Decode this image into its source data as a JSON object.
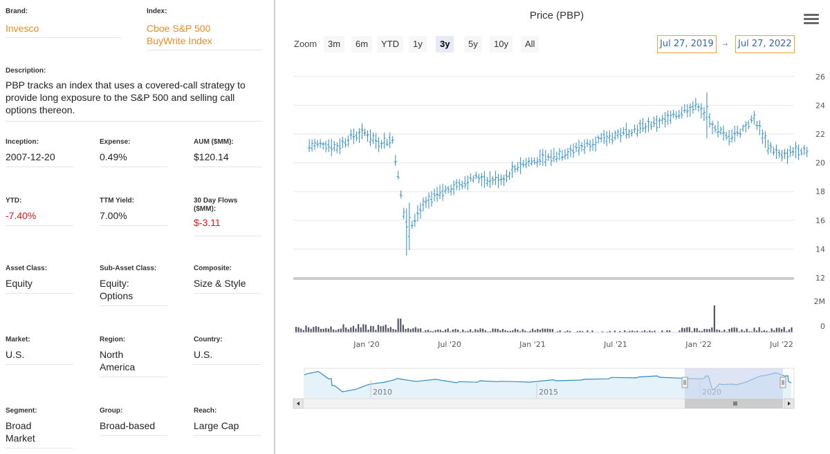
{
  "fund": {
    "brand": {
      "label": "Brand:",
      "value": "Invesco"
    },
    "index": {
      "label": "Index:",
      "value": "Cboe S&P 500 BuyWrite Index"
    },
    "description": {
      "label": "Description:",
      "value": "PBP tracks an index that uses a covered-call strategy to provide long exposure to the S&P 500 and selling call options thereon."
    },
    "inception": {
      "label": "Inception:",
      "value": "2007-12-20"
    },
    "expense": {
      "label": "Expense:",
      "value": "0.49%"
    },
    "aum": {
      "label": "AUM ($MM):",
      "value": "$120.14"
    },
    "ytd": {
      "label": "YTD:",
      "value": "-7.40%"
    },
    "ttm_yield": {
      "label": "TTM Yield:",
      "value": "7.00%"
    },
    "flows": {
      "label": "30 Day Flows ($MM):",
      "value": "$-3.11"
    },
    "asset_class": {
      "label": "Asset Class:",
      "value": "Equity"
    },
    "sub_asset_class": {
      "label": "Sub-Asset Class:",
      "value": "Equity: Options"
    },
    "composite": {
      "label": "Composite:",
      "value": "Size & Style"
    },
    "market": {
      "label": "Market:",
      "value": "U.S."
    },
    "region": {
      "label": "Region:",
      "value": "North America"
    },
    "country": {
      "label": "Country:",
      "value": "U.S."
    },
    "segment": {
      "label": "Segment:",
      "value": "Broad Market"
    },
    "group": {
      "label": "Group:",
      "value": "Broad-based"
    },
    "reach": {
      "label": "Reach:",
      "value": "Large Cap"
    }
  },
  "chart": {
    "title": "Price (PBP)",
    "zoom_label": "Zoom",
    "zoom_buttons": [
      "3m",
      "6m",
      "YTD",
      "1y",
      "3y",
      "5y",
      "10y",
      "All"
    ],
    "active_zoom": "3y",
    "date_from": "Jul 27, 2019",
    "date_arrow": "→",
    "date_to": "Jul 27, 2022",
    "menu_icon": "hamburger-menu-icon",
    "colors": {
      "price": "#2b8cc4",
      "volume": "#555566",
      "navigator_fill": "#e6f2f9",
      "navigator_selection": "#c7d3ef",
      "date_box_border": "#f2a02c",
      "negative": "#e8131a",
      "brand": "#f28a1c"
    }
  },
  "chart_data": {
    "type": "ohlc",
    "y_ticks": [
      26,
      24,
      22,
      20,
      18,
      16,
      14,
      12
    ],
    "ylim": [
      12,
      27
    ],
    "x_ticks": [
      "Jan '20",
      "Jul '20",
      "Jan '21",
      "Jul '21",
      "Jan '22",
      "Jul '22"
    ],
    "volume_ticks": [
      "2M",
      "0"
    ],
    "volume_ylim": [
      0,
      2
    ],
    "navigator_ticks": [
      "2010",
      "2015",
      "2020"
    ],
    "price_series": [
      {
        "x": "2019-08",
        "y": 21.2
      },
      {
        "x": "2019-09",
        "y": 21.3
      },
      {
        "x": "2019-10",
        "y": 21.1
      },
      {
        "x": "2019-11",
        "y": 21.8
      },
      {
        "x": "2019-12",
        "y": 22.1
      },
      {
        "x": "2020-01",
        "y": 21.4
      },
      {
        "x": "2020-02",
        "y": 21.6
      },
      {
        "x": "2020-03",
        "y": 15.2
      },
      {
        "x": "2020-04",
        "y": 16.8
      },
      {
        "x": "2020-05",
        "y": 17.6
      },
      {
        "x": "2020-06",
        "y": 18.2
      },
      {
        "x": "2020-07",
        "y": 18.6
      },
      {
        "x": "2020-08",
        "y": 19.0
      },
      {
        "x": "2020-09",
        "y": 18.8
      },
      {
        "x": "2020-10",
        "y": 18.9
      },
      {
        "x": "2020-11",
        "y": 19.8
      },
      {
        "x": "2020-12",
        "y": 20.1
      },
      {
        "x": "2021-01",
        "y": 20.3
      },
      {
        "x": "2021-02",
        "y": 20.6
      },
      {
        "x": "2021-03",
        "y": 20.9
      },
      {
        "x": "2021-04",
        "y": 21.3
      },
      {
        "x": "2021-05",
        "y": 21.6
      },
      {
        "x": "2021-06",
        "y": 21.9
      },
      {
        "x": "2021-07",
        "y": 22.2
      },
      {
        "x": "2021-08",
        "y": 22.5
      },
      {
        "x": "2021-09",
        "y": 22.8
      },
      {
        "x": "2021-10",
        "y": 23.1
      },
      {
        "x": "2021-11",
        "y": 23.7
      },
      {
        "x": "2021-12",
        "y": 24.0
      },
      {
        "x": "2022-01",
        "y": 22.6
      },
      {
        "x": "2022-02",
        "y": 21.8
      },
      {
        "x": "2022-03",
        "y": 22.2
      },
      {
        "x": "2022-04",
        "y": 23.1
      },
      {
        "x": "2022-05",
        "y": 21.2
      },
      {
        "x": "2022-06",
        "y": 20.4
      },
      {
        "x": "2022-07",
        "y": 20.9
      }
    ]
  }
}
